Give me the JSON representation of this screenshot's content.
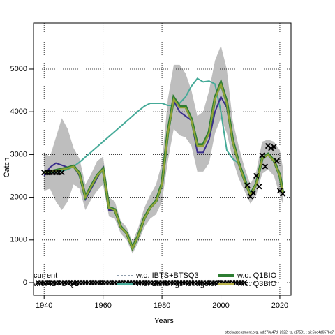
{
  "chart_data": {
    "type": "line",
    "xlabel": "Years",
    "ylabel": "Catch",
    "footer": "stockassessment.org, wd273a47d_2022_fs, r17501 ; git:5be4d657bc7",
    "xlim": [
      1936.4,
      2023.8
    ],
    "ylim": [
      -294,
      6078
    ],
    "xticks": [
      1940,
      1960,
      1980,
      2000,
      2020
    ],
    "yticks": [
      0,
      1000,
      2000,
      3000,
      4000,
      5000
    ],
    "grid": true,
    "x": [
      1940,
      1942,
      1944,
      1946,
      1948,
      1950,
      1952,
      1954,
      1956,
      1958,
      1960,
      1962,
      1964,
      1966,
      1968,
      1970,
      1972,
      1974,
      1976,
      1978,
      1980,
      1982,
      1984,
      1986,
      1988,
      1990,
      1992,
      1994,
      1996,
      1998,
      2000,
      2002,
      2004,
      2006,
      2008,
      2010,
      2012,
      2014,
      2016,
      2018,
      2020,
      2021
    ],
    "band": {
      "color": "#bebebe",
      "upper": [
        3050,
        2950,
        3400,
        3850,
        3600,
        3150,
        2900,
        2300,
        2550,
        2850,
        2950,
        2000,
        1900,
        1450,
        1300,
        950,
        1300,
        1750,
        2050,
        2300,
        2800,
        4300,
        5100,
        5100,
        4900,
        4500,
        3900,
        4000,
        4500,
        5200,
        5550,
        5000,
        3800,
        3200,
        2700,
        2300,
        2600,
        3300,
        3350,
        3300,
        3100,
        2700
      ],
      "lower": [
        2150,
        2200,
        1900,
        1700,
        1900,
        2300,
        2200,
        1700,
        1950,
        2150,
        2300,
        1550,
        1500,
        1150,
        1000,
        680,
        950,
        1300,
        1500,
        1600,
        1900,
        2850,
        3600,
        3450,
        3400,
        3200,
        2600,
        2600,
        2800,
        3500,
        3850,
        3500,
        2900,
        2450,
        2150,
        1850,
        2050,
        2550,
        2650,
        2500,
        2050,
        1850
      ]
    },
    "series": [
      {
        "name": "w.o. Landingsheuagelst",
        "color": "#45aa98",
        "width": 2,
        "dash": false,
        "values": [
          2580,
          2580,
          2590,
          2610,
          2650,
          2720,
          2820,
          2940,
          3060,
          3180,
          3300,
          3420,
          3540,
          3660,
          3780,
          3900,
          4020,
          4130,
          4200,
          4200,
          4200,
          4150,
          4150,
          4200,
          4350,
          4600,
          4780,
          4700,
          4720,
          4650,
          4000,
          3100,
          2900,
          2800,
          2500,
          2050,
          2300,
          2900,
          3000,
          2850,
          2500,
          2100
        ]
      },
      {
        "name": "w.o. IBTS Q1",
        "color": "#3b2e8c",
        "width": 2,
        "dash": false,
        "values": [
          2500,
          2700,
          2800,
          2750,
          2700,
          2720,
          2500,
          1950,
          2200,
          2450,
          2700,
          1700,
          1700,
          1280,
          1150,
          800,
          1100,
          1500,
          1750,
          1900,
          2300,
          3450,
          4250,
          4000,
          3900,
          3800,
          3050,
          3050,
          3350,
          4000,
          4350,
          4100,
          3300,
          2800,
          2400,
          2050,
          2300,
          2900,
          3000,
          2850,
          2500,
          2100
        ]
      },
      {
        "name": "w.o. Q1BIO",
        "color": "#2e7d32",
        "width": 4,
        "dash": false,
        "values": [
          2580,
          2600,
          2630,
          2660,
          2690,
          2730,
          2560,
          2010,
          2260,
          2510,
          2660,
          1760,
          1710,
          1310,
          1160,
          810,
          1110,
          1510,
          1760,
          1910,
          2320,
          3530,
          4330,
          4130,
          4130,
          3830,
          3230,
          3230,
          3530,
          4330,
          4680,
          4230,
          3330,
          2820,
          2410,
          2060,
          2310,
          2910,
          3010,
          2860,
          2510,
          2110
        ]
      },
      {
        "name": "w.o. IBTS+BTSQ3",
        "color": "#1f3b5a",
        "width": 1,
        "dash": true,
        "values": [
          2580,
          2600,
          2620,
          2650,
          2680,
          2720,
          2550,
          2000,
          2250,
          2500,
          2650,
          1750,
          1700,
          1300,
          1150,
          800,
          1100,
          1500,
          1750,
          1900,
          2300,
          3500,
          4300,
          4100,
          4100,
          3800,
          3200,
          3200,
          3500,
          4300,
          4650,
          4200,
          3300,
          2800,
          2400,
          2050,
          2300,
          2900,
          3000,
          2850,
          2500,
          2100
        ]
      },
      {
        "name": "w.o. Q3BIO",
        "color": "#b9b24a",
        "width": 2,
        "dash": false,
        "values": [
          2580,
          2600,
          2620,
          2650,
          2680,
          2720,
          2550,
          2000,
          2250,
          2500,
          2650,
          1750,
          1700,
          1300,
          1150,
          800,
          1100,
          1500,
          1750,
          1900,
          2300,
          3500,
          4300,
          4100,
          4100,
          3800,
          3200,
          3200,
          3500,
          4300,
          4650,
          4200,
          3300,
          2800,
          2400,
          2050,
          2300,
          2900,
          3000,
          2850,
          2500,
          2100
        ]
      },
      {
        "name": "current",
        "color": "#8fa336",
        "width": 2,
        "dash": false,
        "values": [
          2580,
          2600,
          2620,
          2650,
          2680,
          2720,
          2550,
          2000,
          2250,
          2500,
          2650,
          1750,
          1700,
          1300,
          1150,
          800,
          1100,
          1500,
          1750,
          1900,
          2300,
          3500,
          4300,
          4100,
          4100,
          3800,
          3200,
          3200,
          3500,
          4300,
          4650,
          4200,
          3300,
          2800,
          2400,
          2050,
          2300,
          2900,
          3000,
          2850,
          2500,
          2100
        ]
      }
    ],
    "points": {
      "color": "#000000",
      "x": [
        1940,
        1941,
        1942,
        1943,
        1944,
        1945,
        1946,
        2009,
        2010,
        2011,
        2012,
        2013,
        2014,
        2015,
        2016,
        2017,
        2018,
        2019,
        2020,
        2021
      ],
      "values": [
        2580,
        2580,
        2580,
        2580,
        2580,
        2580,
        2580,
        2280,
        2020,
        2100,
        2500,
        2250,
        2980,
        2720,
        3200,
        3150,
        3180,
        2850,
        2150,
        2080
      ]
    },
    "zero_points": {
      "color": "#000000",
      "x": [
        1938,
        1939,
        1940,
        1941,
        1942,
        1943,
        1944,
        1945,
        1946,
        1947,
        1948,
        1949,
        1950,
        1951,
        1952,
        1953,
        1954,
        1955,
        1956,
        1957,
        1958,
        1959,
        1960,
        1961,
        1962,
        1963,
        1964,
        1965,
        1966,
        1967,
        1968,
        1969,
        1970,
        1971,
        1972,
        1973,
        1974,
        1975,
        1976,
        1977,
        1978,
        1979,
        1980,
        1981,
        1982,
        1983,
        1984,
        1985,
        1986,
        1987,
        1988,
        1989,
        1990,
        1991,
        1992,
        1993,
        1994,
        1995,
        1996,
        1997,
        1998,
        1999,
        2000,
        2001,
        2002,
        2003,
        2004,
        2005,
        2006,
        2007,
        2008
      ],
      "values": [
        0,
        0,
        0,
        0,
        0,
        0,
        0,
        0,
        0,
        0,
        0,
        0,
        0,
        0,
        0,
        0,
        0,
        0,
        0,
        0,
        0,
        0,
        0,
        0,
        0,
        0,
        0,
        0,
        0,
        0,
        0,
        0,
        0,
        0,
        0,
        0,
        0,
        0,
        0,
        0,
        0,
        0,
        0,
        0,
        0,
        0,
        0,
        0,
        0,
        0,
        0,
        0,
        0,
        0,
        0,
        0,
        0,
        0,
        0,
        0,
        0,
        0,
        0,
        0,
        0,
        0,
        0,
        0,
        0,
        0,
        0
      ]
    }
  }
}
